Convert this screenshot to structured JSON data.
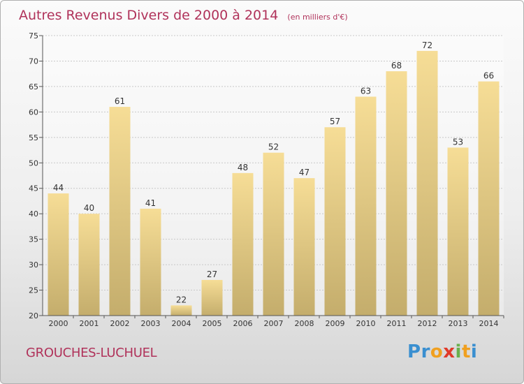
{
  "chart_data": {
    "type": "bar",
    "title": "Autres Revenus Divers de 2000 à 2014",
    "subtitle": "(en milliers d'€)",
    "categories": [
      "2000",
      "2001",
      "2002",
      "2003",
      "2004",
      "2005",
      "2006",
      "2007",
      "2008",
      "2009",
      "2010",
      "2011",
      "2012",
      "2013",
      "2014"
    ],
    "values": [
      44,
      40,
      61,
      41,
      22,
      27,
      48,
      52,
      47,
      57,
      63,
      68,
      72,
      53,
      66
    ],
    "ylim": [
      20,
      75
    ],
    "yticks": [
      20,
      25,
      30,
      35,
      40,
      45,
      50,
      55,
      60,
      65,
      70,
      75
    ],
    "grid": true,
    "bar_color": "#e9cf8a"
  },
  "commune": "GROUCHES-LUCHUEL",
  "logo": {
    "letters": [
      {
        "ch": "P",
        "color": "#3a8fd0"
      },
      {
        "ch": "r",
        "color": "#3a8fd0"
      },
      {
        "ch": "o",
        "color": "#f0a020"
      },
      {
        "ch": "x",
        "color": "#e03a2a"
      },
      {
        "ch": "i",
        "color": "#6ab04c"
      },
      {
        "ch": "t",
        "color": "#f0a020"
      },
      {
        "ch": "i",
        "color": "#3a8fd0"
      }
    ]
  }
}
